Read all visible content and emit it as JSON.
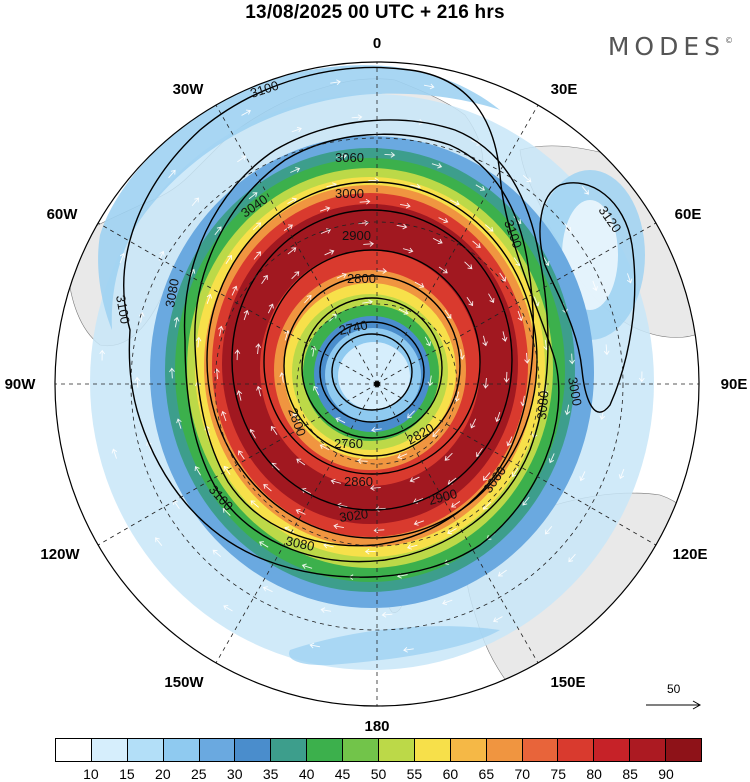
{
  "title": "13/08/2025  00 UTC  + 216 hrs",
  "brand": "MODES",
  "brand_mark": "©",
  "longitude_labels": {
    "top": "0",
    "top_right": "30E",
    "right_upper": "60E",
    "right": "90E",
    "right_lower": "120E",
    "bottom_right": "150E",
    "bottom": "180",
    "bottom_left": "150W",
    "left_lower": "120W",
    "left": "90W",
    "left_upper": "60W",
    "top_left": "30W"
  },
  "contour_labels": [
    "3100",
    "3080",
    "3060",
    "3040",
    "3000",
    "2900",
    "2800",
    "2740",
    "2760",
    "2820",
    "2860",
    "3020",
    "3120",
    "3100",
    "3080",
    "3060",
    "3100",
    "3080",
    "3100",
    "2900",
    "2800",
    "3000"
  ],
  "reference_vector": {
    "label": "50",
    "icon": "arrow-right-icon"
  },
  "colorbar": {
    "colors": [
      "#ffffff",
      "#d6eefc",
      "#b3dff8",
      "#8fcaf0",
      "#6aa9e0",
      "#4a8dcc",
      "#3d9e8c",
      "#3cb04c",
      "#72c44a",
      "#bcd948",
      "#f7e04a",
      "#f5b846",
      "#f09540",
      "#e8643a",
      "#d93a2e",
      "#c62228",
      "#ac1a22",
      "#8e1218"
    ],
    "labels": [
      "10",
      "15",
      "20",
      "25",
      "30",
      "35",
      "40",
      "45",
      "50",
      "55",
      "60",
      "65",
      "70",
      "75",
      "80",
      "85",
      "90"
    ]
  },
  "field_colors": {
    "land": "#e9e9e9",
    "outer_blue": "#9fd2f2",
    "light_blue": "#c8e6f8",
    "mid_blue": "#4f96d2",
    "teal": "#3d9e8c",
    "green": "#3cb04c",
    "yellow_green": "#bcd948",
    "yellow": "#f7e04a",
    "orange": "#f09540",
    "red": "#d93a2e",
    "dark_red": "#a11820"
  }
}
